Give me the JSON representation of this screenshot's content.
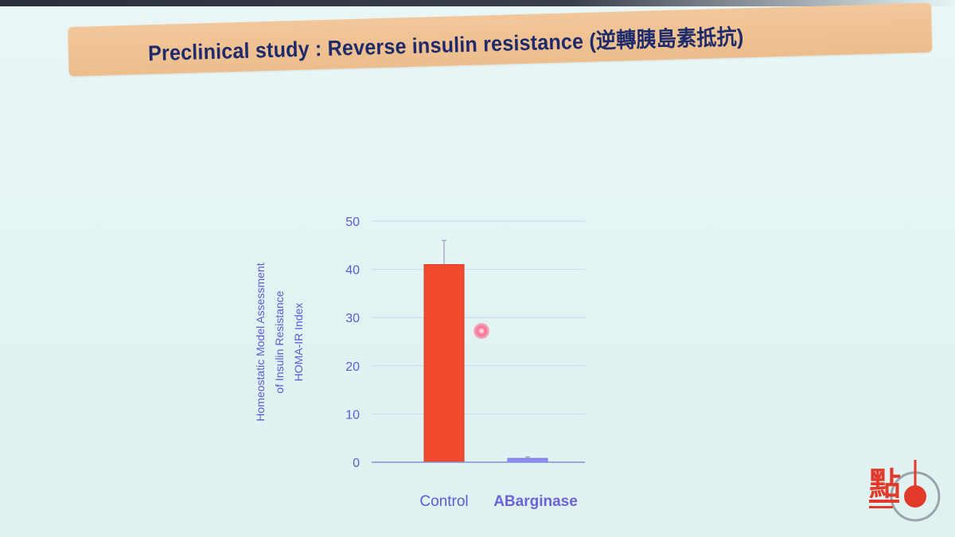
{
  "slide": {
    "title": "Preclinical study : Reverse insulin resistance (逆轉胰島素抵抗)"
  },
  "colors": {
    "control_bar": "#f04a2e",
    "treatment_bar": "#8e8cf0",
    "axis_text": "#5b5bd6",
    "grid": "#c9d6ea",
    "title_text": "#1d2a6b",
    "banner": "#efc192"
  },
  "logo": {
    "name": "station-logo",
    "glyph": "點"
  },
  "chart_data": {
    "type": "bar",
    "title": "",
    "xlabel": "",
    "ylabel": [
      "Homeostatic Model Assessment",
      "of Insulin Resistance",
      "HOMA-IR Index"
    ],
    "ylim": [
      0,
      50
    ],
    "yticks": [
      0,
      10,
      20,
      30,
      40,
      50
    ],
    "grid": true,
    "categories": [
      "Control",
      "ABarginase"
    ],
    "values": [
      41,
      0.8
    ],
    "error": [
      5,
      0.3
    ]
  }
}
